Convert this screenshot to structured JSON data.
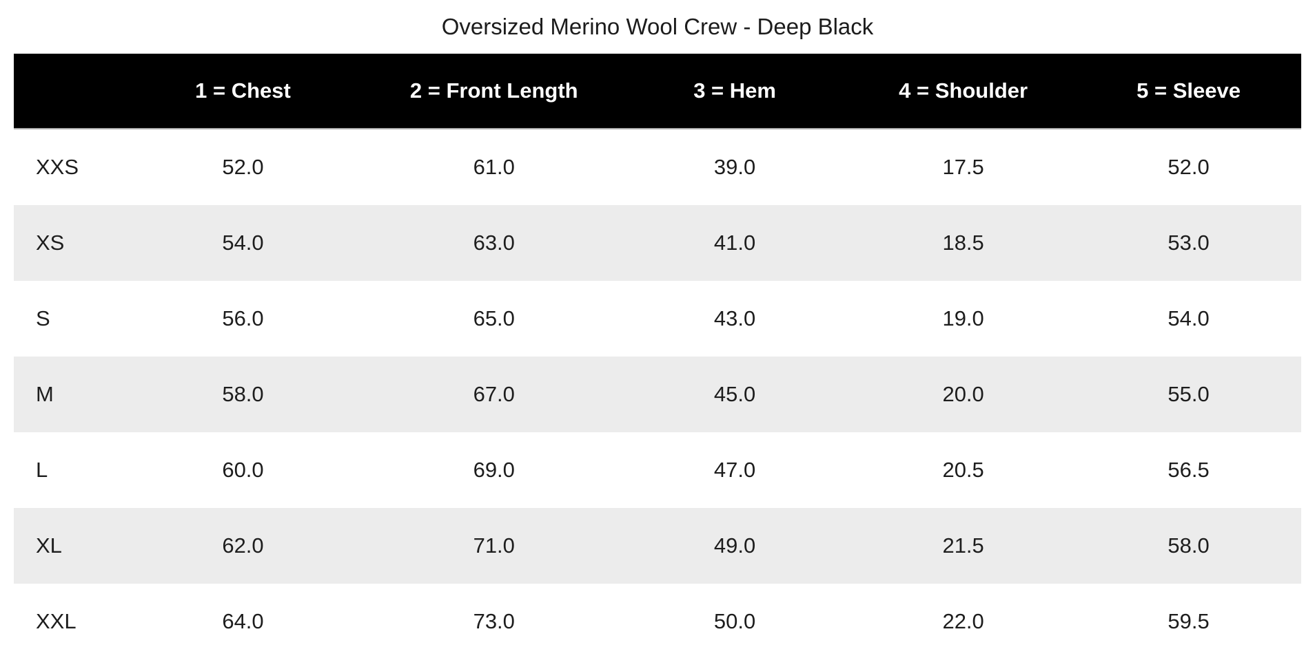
{
  "page": {
    "title": "Oversized Merino Wool Crew - Deep Black"
  },
  "table": {
    "columns": [
      "",
      "1 = Chest",
      "2 = Front Length",
      "3 = Hem",
      "4 = Shoulder",
      "5 = Sleeve"
    ],
    "rows": [
      {
        "size": "XXS",
        "values": [
          "52.0",
          "61.0",
          "39.0",
          "17.5",
          "52.0"
        ]
      },
      {
        "size": "XS",
        "values": [
          "54.0",
          "63.0",
          "41.0",
          "18.5",
          "53.0"
        ]
      },
      {
        "size": "S",
        "values": [
          "56.0",
          "65.0",
          "43.0",
          "19.0",
          "54.0"
        ]
      },
      {
        "size": "M",
        "values": [
          "58.0",
          "67.0",
          "45.0",
          "20.0",
          "55.0"
        ]
      },
      {
        "size": "L",
        "values": [
          "60.0",
          "69.0",
          "47.0",
          "20.5",
          "56.5"
        ]
      },
      {
        "size": "XL",
        "values": [
          "62.0",
          "71.0",
          "49.0",
          "21.5",
          "58.0"
        ]
      },
      {
        "size": "XXL",
        "values": [
          "64.0",
          "73.0",
          "50.0",
          "22.0",
          "59.5"
        ]
      }
    ]
  },
  "colors": {
    "header_bg": "#000000",
    "header_text": "#ffffff",
    "stripe_bg": "#ececec",
    "body_text": "#1d1d1d"
  }
}
